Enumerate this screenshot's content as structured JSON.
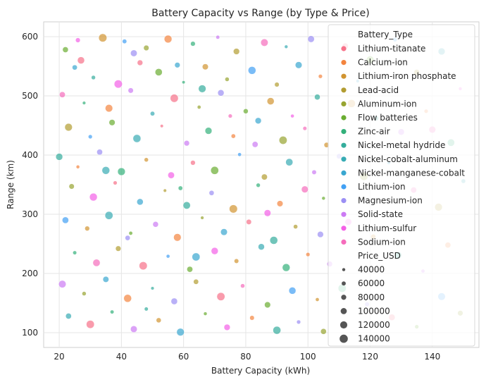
{
  "chart_data": {
    "type": "scatter",
    "title": "Battery Capacity vs Range (by Type & Price)",
    "xlabel": "Battery Capacity (kWh)",
    "ylabel": "Range (km)",
    "xlim": [
      15,
      155
    ],
    "ylim": [
      75,
      625
    ],
    "xticks": [
      20,
      40,
      60,
      80,
      100,
      120,
      140
    ],
    "yticks": [
      100,
      200,
      300,
      400,
      500,
      600
    ],
    "grid": true,
    "point_alpha": 0.7,
    "legend": {
      "placement": "upper-right",
      "hue_title": "Battery_Type",
      "size_title": "Price_USD",
      "size_values": [
        40000,
        60000,
        80000,
        100000,
        120000,
        140000
      ]
    },
    "series": [
      {
        "name": "Lithium-titanate",
        "color": "#f77189"
      },
      {
        "name": "Calcium-ion",
        "color": "#f3843e"
      },
      {
        "name": "Lithium-iron phosphate",
        "color": "#d19430"
      },
      {
        "name": "Lead-acid",
        "color": "#b29c31"
      },
      {
        "name": "Aluminum-ion",
        "color": "#97a431"
      },
      {
        "name": "Flow batteries",
        "color": "#6aad31"
      },
      {
        "name": "Zinc-air",
        "color": "#33b07a"
      },
      {
        "name": "Nickel-metal hydride",
        "color": "#35ad9c"
      },
      {
        "name": "Nickel-cobalt-aluminum",
        "color": "#37abb4"
      },
      {
        "name": "Nickel-manganese-cobalt",
        "color": "#39a7d0"
      },
      {
        "name": "Lithium-ion",
        "color": "#41a0f4"
      },
      {
        "name": "Magnesium-ion",
        "color": "#9b8ff4"
      },
      {
        "name": "Solid-state",
        "color": "#cc7af4"
      },
      {
        "name": "Lithium-sulfur",
        "color": "#f45fe7"
      },
      {
        "name": "Sodium-ion",
        "color": "#f56cbc"
      }
    ],
    "points_note": "",
    "points": [
      [
        22,
        578,
        5,
        92000
      ],
      [
        27,
        560,
        0,
        118000
      ],
      [
        34,
        598,
        2,
        140000
      ],
      [
        41,
        592,
        10,
        66000
      ],
      [
        48,
        581,
        4,
        85000
      ],
      [
        55,
        596,
        1,
        130000
      ],
      [
        63,
        588,
        6,
        72000
      ],
      [
        71,
        599,
        12,
        54000
      ],
      [
        77,
        575,
        3,
        101000
      ],
      [
        86,
        590,
        14,
        124000
      ],
      [
        93,
        583,
        8,
        46000
      ],
      [
        101,
        596,
        11,
        110000
      ],
      [
        25,
        548,
        9,
        79000
      ],
      [
        31,
        531,
        7,
        61000
      ],
      [
        39,
        520,
        13,
        139000
      ],
      [
        46,
        556,
        0,
        88000
      ],
      [
        52,
        540,
        5,
        120000
      ],
      [
        60,
        523,
        6,
        41000
      ],
      [
        67,
        549,
        2,
        97000
      ],
      [
        74,
        528,
        4,
        63000
      ],
      [
        82,
        543,
        10,
        132000
      ],
      [
        90,
        519,
        3,
        70000
      ],
      [
        97,
        552,
        9,
        112000
      ],
      [
        104,
        533,
        1,
        58000
      ],
      [
        21,
        502,
        14,
        95000
      ],
      [
        28,
        488,
        6,
        44000
      ],
      [
        36,
        479,
        1,
        126000
      ],
      [
        43,
        509,
        12,
        83000
      ],
      [
        50,
        470,
        8,
        67000
      ],
      [
        57,
        496,
        0,
        138000
      ],
      [
        65,
        481,
        4,
        52000
      ],
      [
        72,
        505,
        11,
        104000
      ],
      [
        80,
        474,
        5,
        76000
      ],
      [
        88,
        491,
        2,
        119000
      ],
      [
        95,
        466,
        13,
        49000
      ],
      [
        103,
        498,
        7,
        91000
      ],
      [
        23,
        447,
        3,
        128000
      ],
      [
        30,
        431,
        10,
        59000
      ],
      [
        37,
        455,
        5,
        99000
      ],
      [
        45,
        428,
        8,
        134000
      ],
      [
        53,
        449,
        0,
        42000
      ],
      [
        61,
        420,
        12,
        87000
      ],
      [
        68,
        441,
        6,
        115000
      ],
      [
        76,
        432,
        1,
        65000
      ],
      [
        84,
        458,
        9,
        102000
      ],
      [
        92,
        425,
        4,
        137000
      ],
      [
        99,
        445,
        14,
        56000
      ],
      [
        106,
        417,
        2,
        81000
      ],
      [
        20,
        397,
        7,
        116000
      ],
      [
        26,
        380,
        1,
        48000
      ],
      [
        33,
        405,
        11,
        93000
      ],
      [
        40,
        372,
        6,
        129000
      ],
      [
        48,
        392,
        2,
        62000
      ],
      [
        56,
        366,
        13,
        108000
      ],
      [
        63,
        387,
        0,
        74000
      ],
      [
        70,
        374,
        5,
        135000
      ],
      [
        78,
        401,
        10,
        51000
      ],
      [
        86,
        363,
        3,
        96000
      ],
      [
        94,
        388,
        8,
        121000
      ],
      [
        102,
        371,
        12,
        68000
      ],
      [
        24,
        347,
        4,
        84000
      ],
      [
        31,
        329,
        13,
        131000
      ],
      [
        38,
        353,
        0,
        57000
      ],
      [
        46,
        321,
        9,
        105000
      ],
      [
        54,
        340,
        3,
        43000
      ],
      [
        61,
        315,
        7,
        123000
      ],
      [
        69,
        336,
        11,
        78000
      ],
      [
        76,
        309,
        2,
        140000
      ],
      [
        84,
        349,
        6,
        60000
      ],
      [
        91,
        318,
        1,
        98000
      ],
      [
        99,
        342,
        14,
        113000
      ],
      [
        105,
        327,
        5,
        47000
      ],
      [
        22,
        290,
        10,
        107000
      ],
      [
        29,
        276,
        2,
        73000
      ],
      [
        36,
        298,
        8,
        136000
      ],
      [
        43,
        268,
        5,
        53000
      ],
      [
        51,
        283,
        12,
        90000
      ],
      [
        58,
        261,
        1,
        127000
      ],
      [
        66,
        294,
        4,
        45000
      ],
      [
        73,
        270,
        9,
        111000
      ],
      [
        81,
        287,
        0,
        82000
      ],
      [
        89,
        256,
        7,
        133000
      ],
      [
        96,
        279,
        3,
        64000
      ],
      [
        104,
        266,
        11,
        100000
      ],
      [
        25,
        235,
        6,
        55000
      ],
      [
        32,
        218,
        14,
        122000
      ],
      [
        39,
        242,
        3,
        86000
      ],
      [
        47,
        213,
        0,
        139000
      ],
      [
        55,
        229,
        10,
        50000
      ],
      [
        62,
        207,
        5,
        94000
      ],
      [
        70,
        238,
        13,
        117000
      ],
      [
        77,
        221,
        2,
        69000
      ],
      [
        85,
        245,
        8,
        103000
      ],
      [
        93,
        210,
        6,
        130000
      ],
      [
        100,
        232,
        1,
        58000
      ],
      [
        107,
        216,
        12,
        89000
      ],
      [
        21,
        182,
        12,
        125000
      ],
      [
        28,
        166,
        4,
        61000
      ],
      [
        35,
        190,
        9,
        97000
      ],
      [
        42,
        158,
        1,
        132000
      ],
      [
        50,
        175,
        7,
        44000
      ],
      [
        57,
        153,
        11,
        106000
      ],
      [
        64,
        186,
        3,
        80000
      ],
      [
        72,
        161,
        0,
        138000
      ],
      [
        79,
        179,
        14,
        63000
      ],
      [
        87,
        147,
        5,
        99000
      ],
      [
        95,
        171,
        10,
        118000
      ],
      [
        103,
        156,
        2,
        52000
      ],
      [
        23,
        128,
        8,
        93000
      ],
      [
        30,
        114,
        0,
        137000
      ],
      [
        37,
        135,
        6,
        54000
      ],
      [
        44,
        106,
        12,
        110000
      ],
      [
        52,
        121,
        2,
        77000
      ],
      [
        59,
        101,
        9,
        128000
      ],
      [
        67,
        132,
        5,
        48000
      ],
      [
        74,
        109,
        13,
        101000
      ],
      [
        82,
        125,
        1,
        70000
      ],
      [
        90,
        104,
        7,
        134000
      ],
      [
        97,
        118,
        11,
        59000
      ],
      [
        105,
        102,
        4,
        92000
      ],
      [
        26,
        594,
        13,
        72000
      ],
      [
        44,
        572,
        11,
        109000
      ],
      [
        58,
        552,
        9,
        86000
      ],
      [
        66,
        512,
        7,
        127000
      ],
      [
        75,
        466,
        14,
        58000
      ],
      [
        83,
        418,
        12,
        95000
      ],
      [
        35,
        374,
        8,
        131000
      ],
      [
        59,
        344,
        6,
        66000
      ],
      [
        87,
        302,
        13,
        112000
      ],
      [
        42,
        260,
        11,
        79000
      ],
      [
        64,
        228,
        9,
        136000
      ],
      [
        48,
        140,
        7,
        55000
      ],
      [
        112,
        584,
        0,
        99000
      ],
      [
        120,
        561,
        5,
        127000
      ],
      [
        128,
        595,
        10,
        62000
      ],
      [
        135,
        540,
        3,
        88000
      ],
      [
        143,
        575,
        8,
        115000
      ],
      [
        149,
        512,
        13,
        46000
      ],
      [
        114,
        487,
        2,
        134000
      ],
      [
        122,
        462,
        7,
        71000
      ],
      [
        130,
        439,
        12,
        103000
      ],
      [
        138,
        474,
        1,
        57000
      ],
      [
        146,
        421,
        6,
        121000
      ],
      [
        110,
        398,
        11,
        82000
      ],
      [
        118,
        364,
        4,
        139000
      ],
      [
        126,
        387,
        9,
        49000
      ],
      [
        134,
        341,
        14,
        96000
      ],
      [
        142,
        312,
        3,
        128000
      ],
      [
        150,
        356,
        8,
        65000
      ],
      [
        113,
        287,
        13,
        110000
      ],
      [
        121,
        262,
        2,
        78000
      ],
      [
        129,
        231,
        7,
        119000
      ],
      [
        137,
        204,
        12,
        53000
      ],
      [
        145,
        248,
        1,
        92000
      ],
      [
        111,
        175,
        6,
        137000
      ],
      [
        119,
        148,
        11,
        69000
      ],
      [
        127,
        126,
        0,
        104000
      ],
      [
        135,
        110,
        5,
        58000
      ],
      [
        143,
        161,
        10,
        125000
      ],
      [
        149,
        133,
        4,
        85000
      ],
      [
        116,
        525,
        9,
        44000
      ],
      [
        140,
        443,
        14,
        113000
      ]
    ]
  }
}
